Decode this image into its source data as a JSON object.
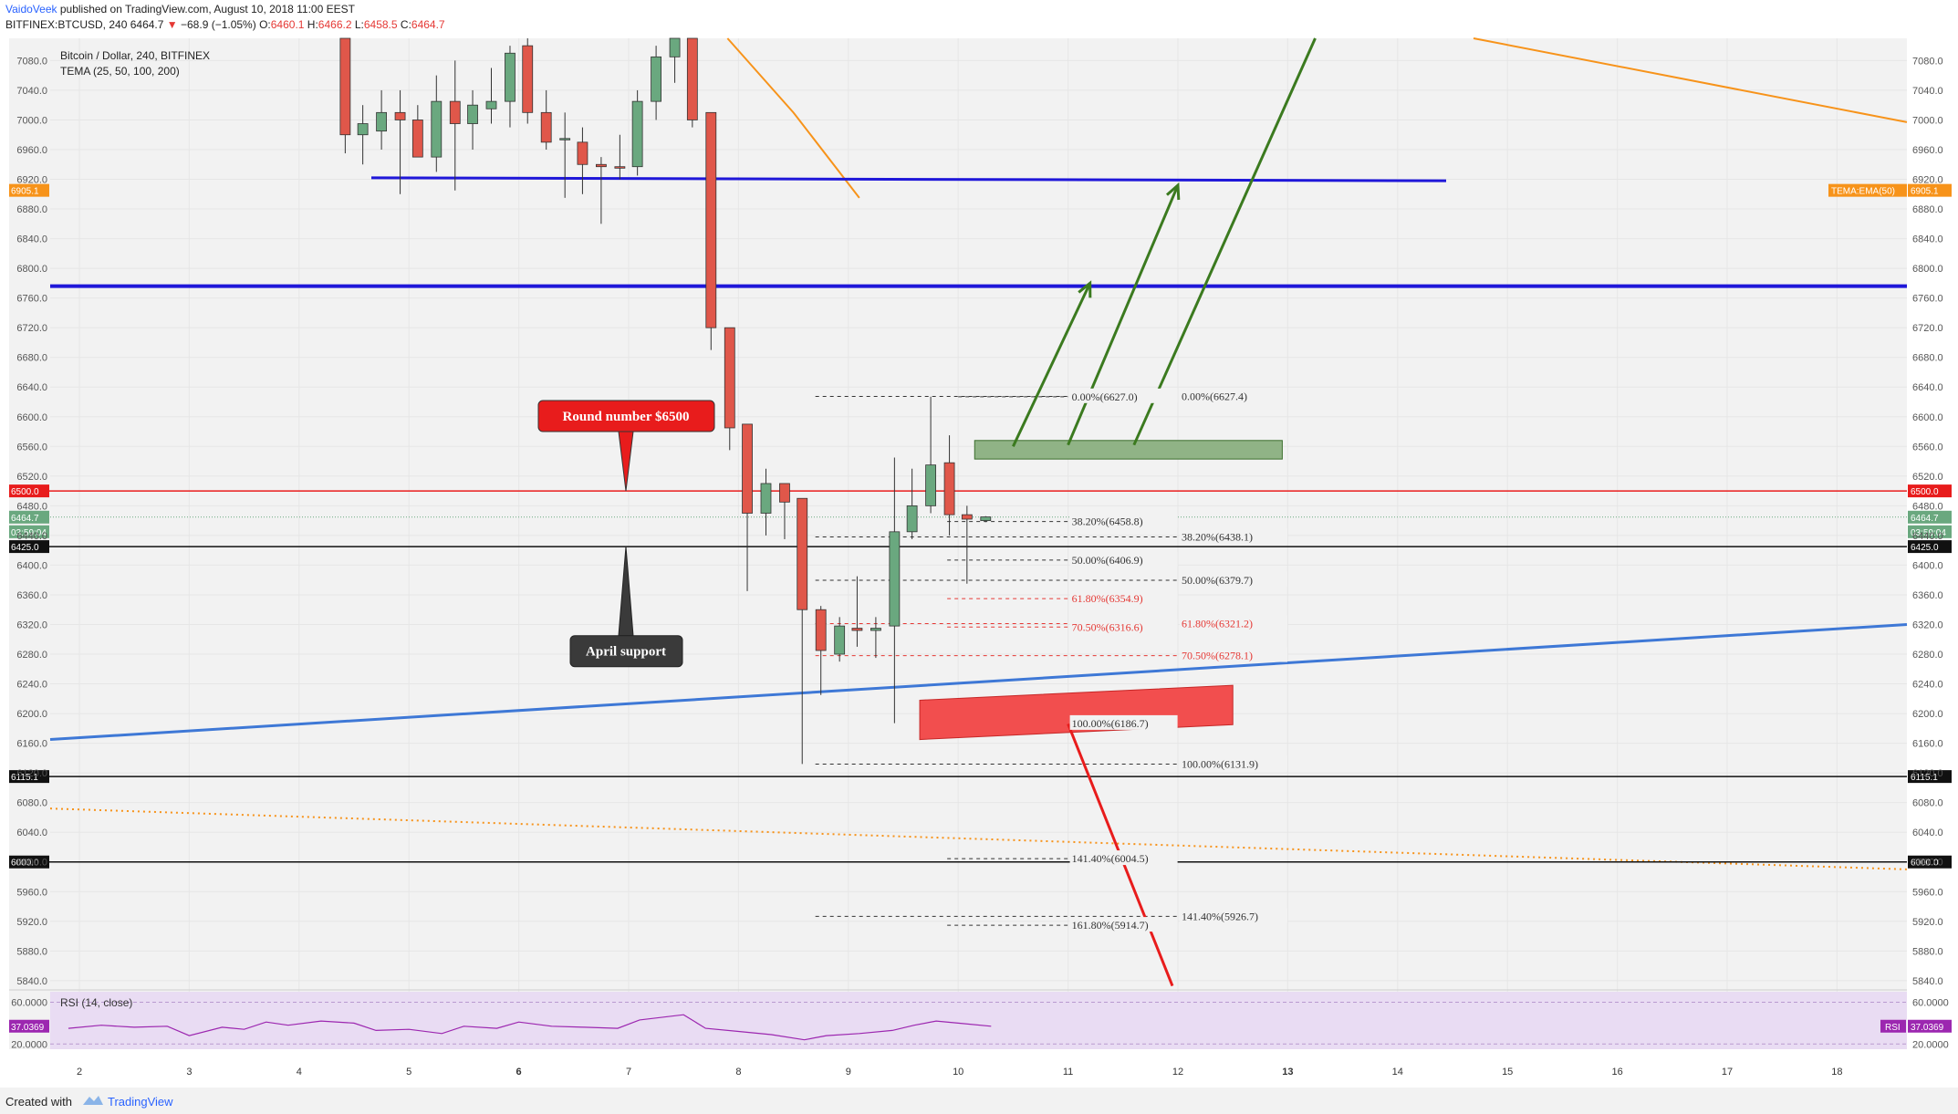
{
  "header": {
    "author": "VaidoVeek",
    "published": "published on TradingView.com, August 10, 2018 11:00 EEST",
    "symbol": "BITFINEX:BTCUSD, 240",
    "price": "6464.7",
    "change": "−68.9 (−1.05%)",
    "o_label": "O:",
    "o_val": "6460.1",
    "h_label": "H:",
    "h_val": "6466.2",
    "l_label": "L:",
    "l_val": "6458.5",
    "c_label": "C:",
    "c_val": "6464.7"
  },
  "footer": {
    "created_with": "Created with",
    "brand": "TradingView"
  },
  "colors": {
    "up": "#6aa87f",
    "down": "#e0574a",
    "blue_line": "#1f17d9",
    "trend": "#3e78d6",
    "tema": "#f7931a",
    "green_arrow": "#3b7a1f",
    "red_arrow": "#e81c1c",
    "rsi_bg": "#e9dcf3",
    "rsi_line": "#9c27b0"
  },
  "chart_data": {
    "type": "candlestick",
    "title": "Bitcoin / Dollar, 240, BITFINEX",
    "indicator": "TEMA (25, 50, 100, 200)",
    "ylim": [
      5830,
      7110
    ],
    "y_ticks": [
      5840,
      5880,
      5920,
      5960,
      6000,
      6040,
      6080,
      6120,
      6160,
      6200,
      6240,
      6280,
      6320,
      6360,
      6400,
      6440,
      6480,
      6520,
      6560,
      6600,
      6640,
      6680,
      6720,
      6760,
      6800,
      6840,
      6880,
      6920,
      6960,
      7000,
      7040,
      7080
    ],
    "x_ticks": [
      {
        "label": "2",
        "day": 2
      },
      {
        "label": "3",
        "day": 3
      },
      {
        "label": "4",
        "day": 4
      },
      {
        "label": "5",
        "day": 5
      },
      {
        "label": "6",
        "day": 6,
        "bold": true
      },
      {
        "label": "7",
        "day": 7
      },
      {
        "label": "8",
        "day": 8
      },
      {
        "label": "9",
        "day": 9
      },
      {
        "label": "10",
        "day": 10
      },
      {
        "label": "11",
        "day": 11
      },
      {
        "label": "12",
        "day": 12
      },
      {
        "label": "13",
        "day": 13,
        "bold": true
      },
      {
        "label": "14",
        "day": 14
      },
      {
        "label": "15",
        "day": 15
      },
      {
        "label": "16",
        "day": 16
      },
      {
        "label": "17",
        "day": 17
      },
      {
        "label": "18",
        "day": 18
      }
    ],
    "candles": [
      {
        "t": 4.42,
        "o": 7110,
        "h": 7110,
        "l": 6955,
        "c": 6980
      },
      {
        "t": 4.58,
        "o": 6980,
        "h": 7020,
        "l": 6940,
        "c": 6995
      },
      {
        "t": 4.75,
        "o": 6985,
        "h": 7040,
        "l": 6960,
        "c": 7010
      },
      {
        "t": 4.92,
        "o": 7010,
        "h": 7040,
        "l": 6900,
        "c": 7000
      },
      {
        "t": 5.08,
        "o": 7000,
        "h": 7020,
        "l": 6960,
        "c": 6950
      },
      {
        "t": 5.25,
        "o": 6950,
        "h": 7060,
        "l": 6930,
        "c": 7025
      },
      {
        "t": 5.42,
        "o": 7025,
        "h": 7080,
        "l": 6905,
        "c": 6995
      },
      {
        "t": 5.58,
        "o": 6995,
        "h": 7040,
        "l": 6960,
        "c": 7020
      },
      {
        "t": 5.75,
        "o": 7015,
        "h": 7070,
        "l": 6995,
        "c": 7025
      },
      {
        "t": 5.92,
        "o": 7025,
        "h": 7100,
        "l": 6990,
        "c": 7090
      },
      {
        "t": 6.08,
        "o": 7100,
        "h": 7110,
        "l": 6995,
        "c": 7010
      },
      {
        "t": 6.25,
        "o": 7010,
        "h": 7040,
        "l": 6960,
        "c": 6970
      },
      {
        "t": 6.42,
        "o": 6975,
        "h": 7010,
        "l": 6895,
        "c": 6975
      },
      {
        "t": 6.58,
        "o": 6970,
        "h": 6990,
        "l": 6900,
        "c": 6940
      },
      {
        "t": 6.75,
        "o": 6940,
        "h": 6950,
        "l": 6860,
        "c": 6937
      },
      {
        "t": 6.92,
        "o": 6937,
        "h": 6980,
        "l": 6920,
        "c": 6935
      },
      {
        "t": 7.08,
        "o": 6937,
        "h": 7040,
        "l": 6925,
        "c": 7025
      },
      {
        "t": 7.25,
        "o": 7025,
        "h": 7100,
        "l": 7000,
        "c": 7085
      },
      {
        "t": 7.42,
        "o": 7085,
        "h": 7110,
        "l": 7050,
        "c": 7110
      },
      {
        "t": 7.58,
        "o": 7110,
        "h": 7110,
        "l": 6990,
        "c": 7000
      },
      {
        "t": 7.75,
        "o": 7010,
        "h": 7010,
        "l": 6690,
        "c": 6720
      },
      {
        "t": 7.92,
        "o": 6720,
        "h": 6720,
        "l": 6555,
        "c": 6585
      },
      {
        "t": 8.08,
        "o": 6590,
        "h": 6590,
        "l": 6365,
        "c": 6470
      },
      {
        "t": 8.25,
        "o": 6470,
        "h": 6530,
        "l": 6440,
        "c": 6510
      },
      {
        "t": 8.42,
        "o": 6510,
        "h": 6510,
        "l": 6435,
        "c": 6485
      },
      {
        "t": 8.58,
        "o": 6490,
        "h": 6490,
        "l": 6132,
        "c": 6340
      },
      {
        "t": 8.75,
        "o": 6340,
        "h": 6345,
        "l": 6225,
        "c": 6285
      },
      {
        "t": 8.92,
        "o": 6280,
        "h": 6330,
        "l": 6270,
        "c": 6318
      },
      {
        "t": 9.08,
        "o": 6315,
        "h": 6385,
        "l": 6290,
        "c": 6312
      },
      {
        "t": 9.25,
        "o": 6312,
        "h": 6330,
        "l": 6275,
        "c": 6315
      },
      {
        "t": 9.42,
        "o": 6318,
        "h": 6545,
        "l": 6187,
        "c": 6445
      },
      {
        "t": 9.58,
        "o": 6445,
        "h": 6530,
        "l": 6435,
        "c": 6480
      },
      {
        "t": 9.75,
        "o": 6480,
        "h": 6627,
        "l": 6470,
        "c": 6535
      },
      {
        "t": 9.92,
        "o": 6538,
        "h": 6575,
        "l": 6440,
        "c": 6468
      },
      {
        "t": 10.08,
        "o": 6468,
        "h": 6480,
        "l": 6375,
        "c": 6462
      },
      {
        "t": 10.25,
        "o": 6460,
        "h": 6466,
        "l": 6458,
        "c": 6465
      }
    ],
    "fib_labels": [
      {
        "text": "0.00%(6627.0)",
        "price": 6627,
        "t0": 10.0,
        "t1": 11.0,
        "color": "#333"
      },
      {
        "text": "38.20%(6458.8)",
        "price": 6458.8,
        "t0": 9.9,
        "t1": 11.0,
        "color": "#333"
      },
      {
        "text": "50.00%(6406.9)",
        "price": 6406.9,
        "t0": 9.9,
        "t1": 11.0,
        "color": "#333"
      },
      {
        "text": "61.80%(6354.9)",
        "price": 6354.9,
        "t0": 9.9,
        "t1": 11.0,
        "color": "#e53935"
      },
      {
        "text": "70.50%(6316.6)",
        "price": 6316.6,
        "t0": 9.9,
        "t1": 11.0,
        "color": "#e53935"
      },
      {
        "text": "100.00%(6186.7)",
        "price": 6186.7,
        "t0": 9.9,
        "t1": 11.0,
        "color": "#333"
      },
      {
        "text": "141.40%(6004.5)",
        "price": 6004.5,
        "t0": 9.9,
        "t1": 11.0,
        "color": "#333"
      },
      {
        "text": "161.80%(5914.7)",
        "price": 5914.7,
        "t0": 9.9,
        "t1": 11.0,
        "color": "#333"
      },
      {
        "text": "0.00%(6627.4)",
        "price": 6627.4,
        "t0": 8.7,
        "t1": 12.0,
        "color": "#333"
      },
      {
        "text": "38.20%(6438.1)",
        "price": 6438.1,
        "t0": 8.7,
        "t1": 12.0,
        "color": "#333"
      },
      {
        "text": "50.00%(6379.7)",
        "price": 6379.7,
        "t0": 8.7,
        "t1": 12.0,
        "color": "#333"
      },
      {
        "text": "61.80%(6321.2)",
        "price": 6321.2,
        "t0": 8.7,
        "t1": 12.0,
        "color": "#e53935"
      },
      {
        "text": "70.50%(6278.1)",
        "price": 6278.1,
        "t0": 8.7,
        "t1": 12.0,
        "color": "#e53935"
      },
      {
        "text": "100.00%(6131.9)",
        "price": 6131.9,
        "t0": 8.7,
        "t1": 12.0,
        "color": "#333"
      },
      {
        "text": "141.40%(5926.7)",
        "price": 5926.7,
        "t0": 8.7,
        "t1": 12.0,
        "color": "#333"
      }
    ],
    "horizontal_levels": [
      {
        "price": 6905.1,
        "label": "6905.1",
        "bg": "#f7931a",
        "right_extra": "TEMA:EMA(50)"
      },
      {
        "price": 6500.0,
        "label": "6500.0",
        "bg": "#e81c1c"
      },
      {
        "price": 6464.7,
        "label": "6464.7",
        "bg": "#6aa87f"
      },
      {
        "price": 6445.0,
        "label": "03:59:04",
        "bg": "#6aa87f"
      },
      {
        "price": 6425.0,
        "label": "6425.0",
        "bg": "#111111"
      },
      {
        "price": 6115.1,
        "label": "6115.1",
        "bg": "#111111"
      },
      {
        "price": 6000.0,
        "label": "6000.0",
        "bg": "#111111"
      }
    ],
    "annotations": {
      "round_number": "Round number $6500",
      "april_support": "April support"
    },
    "rsi": {
      "label": "RSI (14, close)",
      "ylim": [
        15,
        70
      ],
      "ticks": [
        20.0,
        60.0
      ],
      "tick_labels": [
        "20.0000",
        "60.0000"
      ],
      "current": "37.0369",
      "tag": "RSI",
      "values": [
        {
          "t": 1.9,
          "v": 35
        },
        {
          "t": 2.2,
          "v": 38
        },
        {
          "t": 2.5,
          "v": 36
        },
        {
          "t": 2.8,
          "v": 37
        },
        {
          "t": 3.0,
          "v": 28
        },
        {
          "t": 3.3,
          "v": 36
        },
        {
          "t": 3.5,
          "v": 34
        },
        {
          "t": 3.7,
          "v": 41
        },
        {
          "t": 3.9,
          "v": 38
        },
        {
          "t": 4.2,
          "v": 42
        },
        {
          "t": 4.5,
          "v": 40
        },
        {
          "t": 4.7,
          "v": 33
        },
        {
          "t": 5.0,
          "v": 34
        },
        {
          "t": 5.3,
          "v": 30
        },
        {
          "t": 5.5,
          "v": 37
        },
        {
          "t": 5.8,
          "v": 35
        },
        {
          "t": 6.0,
          "v": 41
        },
        {
          "t": 6.3,
          "v": 37
        },
        {
          "t": 6.6,
          "v": 36
        },
        {
          "t": 6.9,
          "v": 35
        },
        {
          "t": 7.1,
          "v": 43
        },
        {
          "t": 7.5,
          "v": 48
        },
        {
          "t": 7.7,
          "v": 35
        },
        {
          "t": 8.0,
          "v": 32
        },
        {
          "t": 8.3,
          "v": 29
        },
        {
          "t": 8.6,
          "v": 24
        },
        {
          "t": 8.8,
          "v": 28
        },
        {
          "t": 9.1,
          "v": 30
        },
        {
          "t": 9.4,
          "v": 33
        },
        {
          "t": 9.6,
          "v": 38
        },
        {
          "t": 9.8,
          "v": 42
        },
        {
          "t": 10.0,
          "v": 40
        },
        {
          "t": 10.3,
          "v": 37
        }
      ]
    }
  }
}
